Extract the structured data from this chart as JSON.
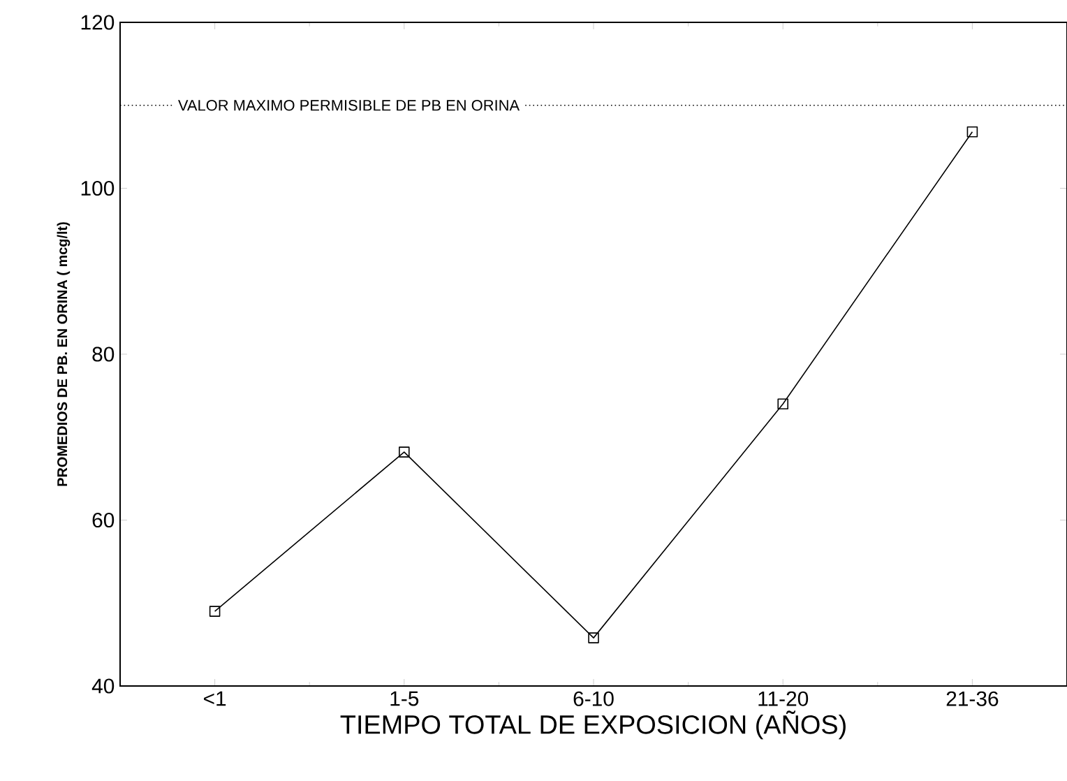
{
  "chart_data": {
    "type": "line",
    "xlabel": "TIEMPO TOTAL DE EXPOSICION (AÑOS)",
    "ylabel": "PROMEDIOS DE PB. EN ORINA ( mcg/lt)",
    "categories": [
      "<1",
      "1-5",
      "6-10",
      "11-20",
      "21-36"
    ],
    "series": [
      {
        "color": "#000000",
        "values": [
          49,
          68.2,
          45.8,
          74,
          106.8
        ]
      }
    ],
    "ylim": [
      40,
      120
    ],
    "yticks": [
      40,
      60,
      80,
      100,
      120
    ],
    "ref_lines": [
      {
        "axis": "y",
        "value": 110,
        "label": "VALOR MAXIMO PERMISIBLE DE PB EN ORINA",
        "color": "#000000",
        "line_style": "dotted"
      }
    ],
    "marker": "square",
    "line_style": "solid",
    "grid": false
  }
}
